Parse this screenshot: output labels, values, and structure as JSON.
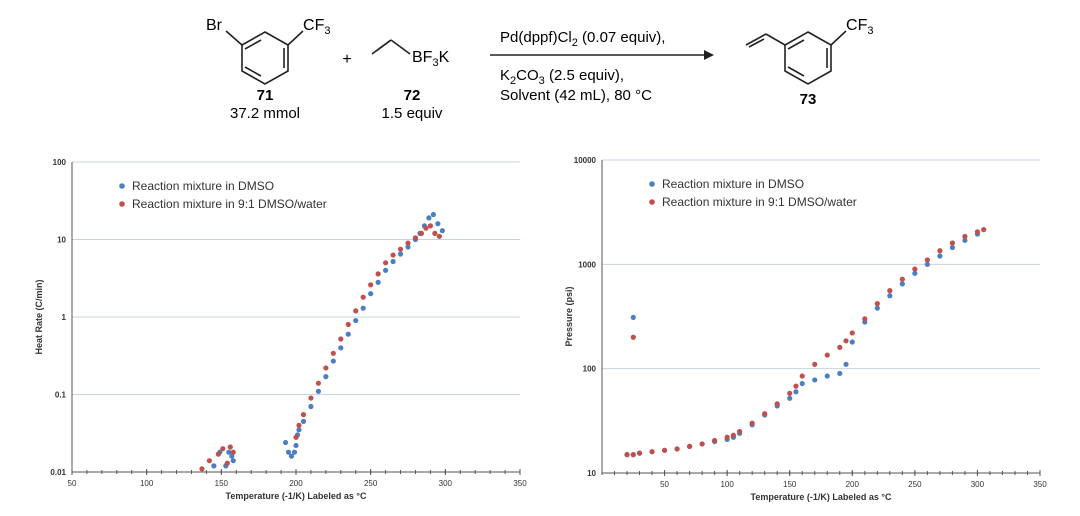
{
  "scheme": {
    "reactant1": {
      "substituent1": "Br",
      "substituent2": "CF3",
      "number": "71",
      "amount": "37.2 mmol"
    },
    "plus": "+",
    "reactant2": {
      "group": "BF3K",
      "number": "72",
      "amount": "1.5 equiv"
    },
    "conditions": {
      "line1": "Pd(dppf)Cl2 (0.07 equiv),",
      "line2": "K2CO3 (2.5 equiv),",
      "line3": "Solvent (42 mL), 80 °C"
    },
    "product": {
      "substituent": "CF3",
      "number": "73"
    }
  },
  "colors": {
    "dmso": "#4a7fc1",
    "dmso_water": "#c0504d",
    "grid": "#c9d3df",
    "axis": "#555555"
  },
  "chart_data": [
    {
      "type": "scatter",
      "yscale": "log",
      "title": "",
      "xlabel": "Temperature (-1/K) Labeled as °C",
      "ylabel": "Heat Rate (C/min)",
      "xlim": [
        50,
        350
      ],
      "ylim": [
        0.01,
        100
      ],
      "xticks": [
        "50",
        "100",
        "150",
        "200",
        "250",
        "300",
        "350"
      ],
      "yticks": [
        "0.01",
        "0.1",
        "1",
        "10",
        "100"
      ],
      "legend": "top-left",
      "series": [
        {
          "name": "Reaction mixture in DMSO",
          "color": "#4a7fc1",
          "x": [
            145,
            149,
            153,
            155,
            157,
            158,
            193,
            195,
            197,
            199,
            200,
            201,
            202,
            205,
            210,
            215,
            220,
            225,
            230,
            235,
            240,
            245,
            250,
            255,
            260,
            265,
            270,
            275,
            280,
            283,
            286,
            289,
            292,
            295,
            298
          ],
          "y": [
            0.012,
            0.018,
            0.012,
            0.018,
            0.016,
            0.014,
            0.024,
            0.018,
            0.016,
            0.018,
            0.022,
            0.03,
            0.035,
            0.045,
            0.07,
            0.11,
            0.17,
            0.27,
            0.4,
            0.6,
            0.9,
            1.3,
            2.0,
            2.8,
            4.0,
            5.2,
            6.5,
            8.0,
            10,
            12,
            15,
            19,
            21,
            16,
            13
          ]
        },
        {
          "name": "Reaction mixture in 9:1 DMSO/water",
          "color": "#c0504d",
          "x": [
            137,
            142,
            148,
            151,
            154,
            156,
            158,
            200,
            202,
            205,
            210,
            215,
            220,
            225,
            230,
            235,
            240,
            245,
            250,
            255,
            260,
            265,
            270,
            275,
            280,
            284,
            287,
            290,
            293,
            296
          ],
          "y": [
            0.011,
            0.014,
            0.017,
            0.02,
            0.013,
            0.021,
            0.018,
            0.028,
            0.04,
            0.055,
            0.09,
            0.14,
            0.22,
            0.34,
            0.52,
            0.8,
            1.2,
            1.8,
            2.6,
            3.6,
            5.0,
            6.3,
            7.5,
            9.0,
            10.5,
            12,
            14,
            15,
            12,
            11
          ]
        }
      ]
    },
    {
      "type": "scatter",
      "yscale": "log",
      "title": "",
      "xlabel": "Temperature (-1/K) Labeled as °C",
      "ylabel": "Pressure (psi)",
      "xlim": [
        0,
        350
      ],
      "ylim": [
        10,
        10000
      ],
      "xticks": [
        "50",
        "100",
        "150",
        "200",
        "250",
        "300",
        "350"
      ],
      "yticks": [
        "10",
        "100",
        "1000",
        "10000"
      ],
      "legend": "top-left",
      "series": [
        {
          "name": "Reaction mixture in DMSO",
          "color": "#4a7fc1",
          "x": [
            20,
            25,
            30,
            40,
            50,
            60,
            70,
            80,
            90,
            100,
            105,
            110,
            120,
            130,
            140,
            150,
            155,
            160,
            170,
            180,
            190,
            195,
            200,
            210,
            220,
            230,
            240,
            250,
            260,
            270,
            280,
            290,
            300,
            25
          ],
          "y": [
            15,
            15,
            15.5,
            16,
            16.5,
            17,
            18,
            19,
            20,
            21,
            22,
            24,
            29,
            36,
            44,
            52,
            60,
            72,
            78,
            85,
            90,
            110,
            180,
            280,
            380,
            500,
            650,
            820,
            1000,
            1200,
            1450,
            1700,
            1950,
            310
          ]
        },
        {
          "name": "Reaction mixture in 9:1 DMSO/water",
          "color": "#c0504d",
          "x": [
            20,
            25,
            30,
            40,
            50,
            60,
            70,
            80,
            90,
            100,
            105,
            110,
            120,
            130,
            140,
            150,
            155,
            160,
            170,
            180,
            190,
            195,
            200,
            210,
            220,
            230,
            240,
            250,
            260,
            270,
            280,
            290,
            300,
            305,
            25
          ],
          "y": [
            15,
            15,
            15.5,
            16,
            16.5,
            17,
            18,
            19,
            20.5,
            22,
            23,
            25,
            30,
            37,
            46,
            58,
            68,
            85,
            110,
            135,
            160,
            185,
            220,
            300,
            420,
            560,
            720,
            900,
            1100,
            1350,
            1600,
            1850,
            2050,
            2150,
            200
          ]
        }
      ]
    }
  ]
}
